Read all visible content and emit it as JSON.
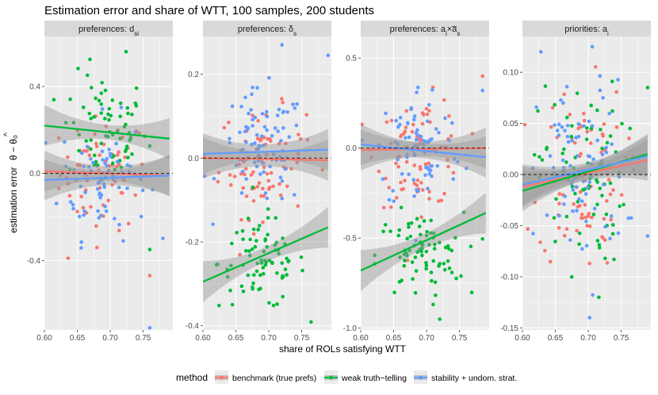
{
  "chart_data": {
    "type": "scatter",
    "title": "Estimation error and share of WTT, 100 samples, 200 students",
    "xlabel": "share of ROLs satisfying WTT",
    "ylabel_prefix": "estimation error",
    "ylabel_hat": "^",
    "ylabel_expr": "θ − θ₀",
    "legend": {
      "title": "method",
      "position": "bottom",
      "entries": [
        {
          "name": "benchmark (true prefs)",
          "color": "#F8766D"
        },
        {
          "name": "weak truth−telling",
          "color": "#00BA38"
        },
        {
          "name": "stability + undom. strat.",
          "color": "#619CFF"
        }
      ]
    },
    "colors": {
      "panel_bg": "#EBEBEB",
      "grid_major": "#FFFFFF",
      "strip_bg": "#D9D9D9",
      "ci_band": "#999999",
      "zero_line": "#000000"
    },
    "facets": [
      {
        "strip": "preferences: d",
        "strip_sub": "si",
        "xlim": [
          0.6,
          0.795
        ],
        "ylim": [
          -0.72,
          0.63
        ],
        "x_ticks": [
          0.6,
          0.65,
          0.7,
          0.75
        ],
        "x_tick_labels": [
          "0.60",
          "0.65",
          "0.70",
          "0.75"
        ],
        "y_ticks": [
          -0.4,
          0.0,
          0.4
        ],
        "y_tick_labels": [
          "-0.4",
          "0.0",
          "0.4"
        ],
        "fits": [
          {
            "series": "benchmark (true prefs)",
            "x0": 0.6,
            "y0": 0.01,
            "x1": 0.79,
            "y1": -0.01
          },
          {
            "series": "weak truth−telling",
            "x0": 0.6,
            "y0": 0.22,
            "x1": 0.79,
            "y1": 0.16
          },
          {
            "series": "stability + undom. strat.",
            "x0": 0.6,
            "y0": -0.03,
            "x1": 0.79,
            "y1": -0.01
          }
        ],
        "clusters": [
          {
            "series": "benchmark (true prefs)",
            "n": 70,
            "cx": 0.69,
            "sx": 0.033,
            "cy": 0.0,
            "sy": 0.13,
            "xmin": 0.6,
            "xmax": 0.785
          },
          {
            "series": "weak truth−telling",
            "n": 70,
            "cx": 0.69,
            "sx": 0.033,
            "cy": 0.2,
            "sy": 0.13,
            "xmin": 0.6,
            "xmax": 0.785
          },
          {
            "series": "stability + undom. strat.",
            "n": 70,
            "cx": 0.69,
            "sx": 0.033,
            "cy": -0.02,
            "sy": 0.14,
            "xmin": 0.6,
            "xmax": 0.785
          }
        ],
        "extra_points": [
          {
            "series": "benchmark (true prefs)",
            "x": 0.636,
            "y": -0.39
          },
          {
            "series": "benchmark (true prefs)",
            "x": 0.76,
            "y": -0.47
          },
          {
            "series": "weak truth−telling",
            "x": 0.76,
            "y": -0.35
          },
          {
            "series": "stability + undom. strat.",
            "x": 0.76,
            "y": -0.71
          },
          {
            "series": "weak truth−telling",
            "x": 0.724,
            "y": 0.56
          }
        ]
      },
      {
        "strip": "preferences: δ",
        "strip_sub": "s",
        "xlim": [
          0.6,
          0.795
        ],
        "ylim": [
          -0.41,
          0.29
        ],
        "x_ticks": [
          0.6,
          0.65,
          0.7,
          0.75
        ],
        "x_tick_labels": [
          "0.60",
          "0.65",
          "0.70",
          "0.75"
        ],
        "y_ticks": [
          -0.4,
          -0.2,
          0.0,
          0.2
        ],
        "y_tick_labels": [
          "-0.4",
          "-0.2",
          "0.0",
          "0.2"
        ],
        "fits": [
          {
            "series": "benchmark (true prefs)",
            "x0": 0.6,
            "y0": 0.0,
            "x1": 0.79,
            "y1": -0.005
          },
          {
            "series": "weak truth−telling",
            "x0": 0.6,
            "y0": -0.295,
            "x1": 0.79,
            "y1": -0.165
          },
          {
            "series": "stability + undom. strat.",
            "x0": 0.6,
            "y0": 0.01,
            "x1": 0.79,
            "y1": 0.02
          }
        ],
        "clusters": [
          {
            "series": "benchmark (true prefs)",
            "n": 80,
            "cx": 0.69,
            "sx": 0.033,
            "cy": -0.01,
            "sy": 0.065,
            "xmin": 0.6,
            "xmax": 0.785
          },
          {
            "series": "weak truth−telling",
            "n": 80,
            "cx": 0.69,
            "sx": 0.033,
            "cy": -0.25,
            "sy": 0.055,
            "xmin": 0.6,
            "xmax": 0.785
          },
          {
            "series": "stability + undom. strat.",
            "n": 80,
            "cx": 0.69,
            "sx": 0.033,
            "cy": 0.02,
            "sy": 0.07,
            "xmin": 0.6,
            "xmax": 0.785
          }
        ],
        "extra_points": [
          {
            "series": "stability + undom. strat.",
            "x": 0.79,
            "y": 0.245
          },
          {
            "series": "stability + undom. strat.",
            "x": 0.72,
            "y": 0.27
          }
        ]
      },
      {
        "strip": "preferences: a",
        "strip_sub": "i",
        "strip_mid": "×a̅",
        "strip_sub2": "s",
        "xlim": [
          0.6,
          0.795
        ],
        "ylim": [
          -1.01,
          0.62
        ],
        "x_ticks": [
          0.6,
          0.65,
          0.7,
          0.75
        ],
        "x_tick_labels": [
          "0.60",
          "0.65",
          "0.70",
          "0.75"
        ],
        "y_ticks": [
          -1.0,
          -0.5,
          0.0,
          0.5
        ],
        "y_tick_labels": [
          "-1.0",
          "-0.5",
          "0.0",
          "0.5"
        ],
        "fits": [
          {
            "series": "benchmark (true prefs)",
            "x0": 0.6,
            "y0": -0.01,
            "x1": 0.79,
            "y1": 0.0
          },
          {
            "series": "weak truth−telling",
            "x0": 0.6,
            "y0": -0.68,
            "x1": 0.79,
            "y1": -0.36
          },
          {
            "series": "stability + undom. strat.",
            "x0": 0.6,
            "y0": 0.02,
            "x1": 0.79,
            "y1": -0.05
          }
        ],
        "clusters": [
          {
            "series": "benchmark (true prefs)",
            "n": 80,
            "cx": 0.69,
            "sx": 0.033,
            "cy": -0.02,
            "sy": 0.15,
            "xmin": 0.6,
            "xmax": 0.785
          },
          {
            "series": "weak truth−telling",
            "n": 80,
            "cx": 0.69,
            "sx": 0.033,
            "cy": -0.6,
            "sy": 0.12,
            "xmin": 0.6,
            "xmax": 0.785
          },
          {
            "series": "stability + undom. strat.",
            "n": 80,
            "cx": 0.69,
            "sx": 0.033,
            "cy": 0.0,
            "sy": 0.18,
            "xmin": 0.6,
            "xmax": 0.785
          }
        ],
        "extra_points": [
          {
            "series": "weak truth−telling",
            "x": 0.72,
            "y": -0.95
          },
          {
            "series": "benchmark (true prefs)",
            "x": 0.785,
            "y": 0.4
          },
          {
            "series": "stability + undom. strat.",
            "x": 0.785,
            "y": 0.32
          }
        ]
      },
      {
        "strip": "priorities: a",
        "strip_sub": "i",
        "xlim": [
          0.6,
          0.795
        ],
        "ylim": [
          -0.152,
          0.135
        ],
        "x_ticks": [
          0.6,
          0.65,
          0.7,
          0.75
        ],
        "x_tick_labels": [
          "0.60",
          "0.65",
          "0.70",
          "0.75"
        ],
        "y_ticks": [
          -0.15,
          -0.1,
          -0.05,
          0.0,
          0.05,
          0.1
        ],
        "y_tick_labels": [
          "-0.15",
          "-0.10",
          "-0.05",
          "0.00",
          "0.05",
          "0.10"
        ],
        "fits": [
          {
            "series": "benchmark (true prefs)",
            "x0": 0.6,
            "y0": -0.012,
            "x1": 0.79,
            "y1": 0.014
          },
          {
            "series": "weak truth−telling",
            "x0": 0.6,
            "y0": -0.016,
            "x1": 0.79,
            "y1": 0.02
          },
          {
            "series": "stability + undom. strat.",
            "x0": 0.6,
            "y0": -0.01,
            "x1": 0.79,
            "y1": 0.018
          }
        ],
        "clusters": [
          {
            "series": "benchmark (true prefs)",
            "n": 80,
            "cx": 0.69,
            "sx": 0.033,
            "cy": 0.0,
            "sy": 0.045,
            "xmin": 0.6,
            "xmax": 0.785
          },
          {
            "series": "weak truth−telling",
            "n": 80,
            "cx": 0.69,
            "sx": 0.033,
            "cy": 0.0,
            "sy": 0.045,
            "xmin": 0.6,
            "xmax": 0.785
          },
          {
            "series": "stability + undom. strat.",
            "n": 80,
            "cx": 0.69,
            "sx": 0.033,
            "cy": 0.0,
            "sy": 0.045,
            "xmin": 0.6,
            "xmax": 0.785
          }
        ],
        "extra_points": [
          {
            "series": "stability + undom. strat.",
            "x": 0.702,
            "y": -0.14
          },
          {
            "series": "weak truth−telling",
            "x": 0.716,
            "y": -0.12
          },
          {
            "series": "stability + undom. strat.",
            "x": 0.628,
            "y": 0.12
          },
          {
            "series": "stability + undom. strat.",
            "x": 0.706,
            "y": 0.125
          },
          {
            "series": "weak truth−telling",
            "x": 0.79,
            "y": 0.085
          },
          {
            "series": "stability + undom. strat.",
            "x": 0.79,
            "y": -0.06
          }
        ]
      }
    ]
  }
}
